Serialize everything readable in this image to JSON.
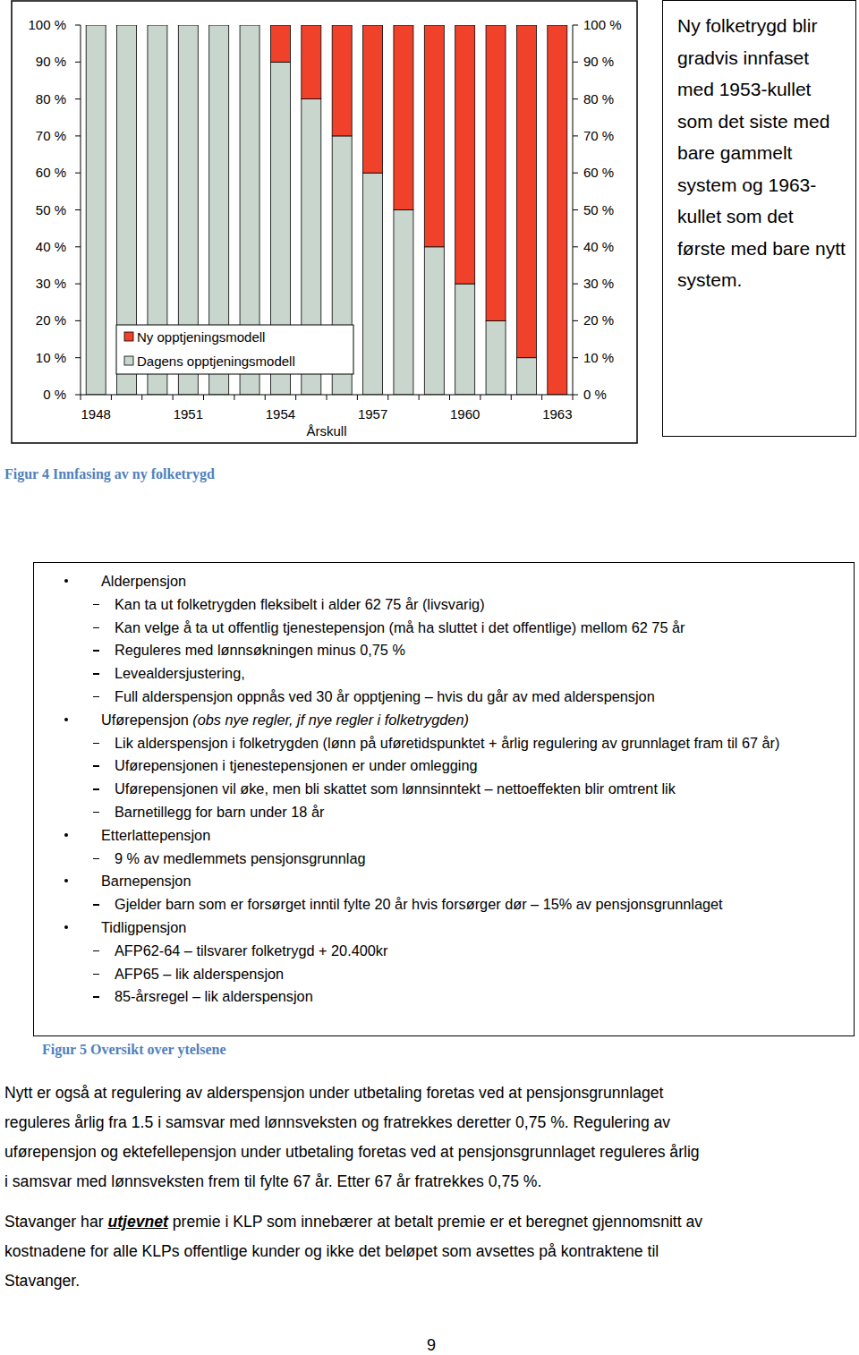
{
  "chart_data": {
    "type": "bar",
    "stacked": true,
    "categories": [
      "1948",
      null,
      null,
      "1951",
      null,
      null,
      "1954",
      null,
      null,
      "1957",
      null,
      null,
      "1960",
      null,
      null,
      "1963"
    ],
    "x_label": "Årskull",
    "series": [
      {
        "name": "Ny opptjeningsmodell",
        "color": "#f0412b",
        "values": [
          0,
          0,
          0,
          0,
          0,
          0,
          10,
          20,
          30,
          40,
          50,
          60,
          70,
          80,
          90,
          100
        ]
      },
      {
        "name": "Dagens opptjeningsmodell",
        "color": "#c8d6cd",
        "values": [
          100,
          100,
          100,
          100,
          100,
          100,
          90,
          80,
          70,
          60,
          50,
          40,
          30,
          20,
          10,
          0
        ]
      }
    ],
    "ylim": [
      0,
      100
    ],
    "yticks": [
      {
        "value": 0,
        "label": "0 %"
      },
      {
        "value": 10,
        "label": "10 %"
      },
      {
        "value": 20,
        "label": "20 %"
      },
      {
        "value": 30,
        "label": "30 %"
      },
      {
        "value": 40,
        "label": "40 %"
      },
      {
        "value": 50,
        "label": "50 %"
      },
      {
        "value": 60,
        "label": "60 %"
      },
      {
        "value": 70,
        "label": "70 %"
      },
      {
        "value": 80,
        "label": "80 %"
      },
      {
        "value": 90,
        "label": "90 %"
      },
      {
        "value": 100,
        "label": "100 %"
      }
    ],
    "y2lim": [
      0,
      100
    ],
    "y2ticks": [
      {
        "value": 0,
        "label": "0 %"
      },
      {
        "value": 10,
        "label": "10 %"
      },
      {
        "value": 20,
        "label": "20 %"
      },
      {
        "value": 30,
        "label": "30 %"
      },
      {
        "value": 40,
        "label": "40 %"
      },
      {
        "value": 50,
        "label": "50 %"
      },
      {
        "value": 60,
        "label": "60 %"
      },
      {
        "value": 70,
        "label": "70 %"
      },
      {
        "value": 80,
        "label": "80 %"
      },
      {
        "value": 90,
        "label": "90 %"
      },
      {
        "value": 100,
        "label": "100 %"
      }
    ],
    "legend": "lower left",
    "annotation": "Ny folketrygd blir gradvis innfaset med 1953-kullet som det siste med bare gammelt system og 1963-kullet som det første med bare nytt system."
  },
  "figure_4_caption": "Figur 4 Innfasing av ny folketrygd",
  "overview": {
    "items": [
      {
        "title": "Alderpensjon",
        "sub": [
          "Kan ta ut folketrygden fleksibelt i alder 62 75 år (livsvarig)",
          "Kan velge å ta ut offentlig tjenestepensjon (må ha sluttet i det offentlige) mellom 62 75 år",
          "Reguleres med lønnsøkningen minus 0,75 %",
          "Levealdersjustering,",
          "Full alderspensjon oppnås ved 30 år opptjening – hvis du går av med alderspensjon"
        ]
      },
      {
        "title": "Uførepensjon",
        "note": "(obs nye regler, jf nye regler i folketrygden)",
        "sub": [
          "Lik alderspensjon i folketrygden (lønn på uføretidspunktet + årlig regulering av grunnlaget fram til 67 år)",
          "Uførepensjonen i tjenestepensjonen er under omlegging",
          "Uførepensjonen vil øke, men bli skattet som lønnsinntekt – nettoeffekten blir omtrent lik",
          "Barnetillegg for barn under 18 år"
        ]
      },
      {
        "title": "Etterlattepensjon",
        "sub": [
          "9 % av medlemmets pensjonsgrunnlag"
        ]
      },
      {
        "title": "Barnepensjon",
        "sub": [
          "Gjelder barn som er forsørget inntil fylte 20 år hvis forsørger dør – 15% av pensjonsgrunnlaget"
        ]
      },
      {
        "title": "Tidligpensjon",
        "sub": [
          "AFP62-64 – tilsvarer folketrygd + 20.400kr",
          "AFP65 – lik alderspensjon",
          "85-årsregel – lik alderspensjon"
        ]
      }
    ]
  },
  "figure_5_caption": "Figur 5 Oversikt over ytelsene",
  "paragraph_1": {
    "lines": [
      "Nytt er også at regulering av alderspensjon under utbetaling foretas ved at pensjonsgrunnlaget",
      "reguleres årlig fra 1.5 i samsvar med lønnsveksten og fratrekkes deretter 0,75 %. Regulering av",
      "uførepensjon og ektefellepensjon under utbetaling foretas ved at pensjonsgrunnlaget reguleres årlig",
      "i samsvar med lønnsveksten frem til fylte 67 år. Etter 67 år fratrekkes 0,75 %."
    ]
  },
  "paragraph_2": {
    "lead": "Stavanger har",
    "emphasis": "utjevnet",
    "lines": [
      "premie i KLP som innebærer at betalt premie er et beregnet gjennomsnitt av",
      "kostnadene for alle KLPs offentlige kunder og ikke det beløpet som avsettes på kontraktene til",
      "Stavanger."
    ]
  },
  "page_number": "9"
}
